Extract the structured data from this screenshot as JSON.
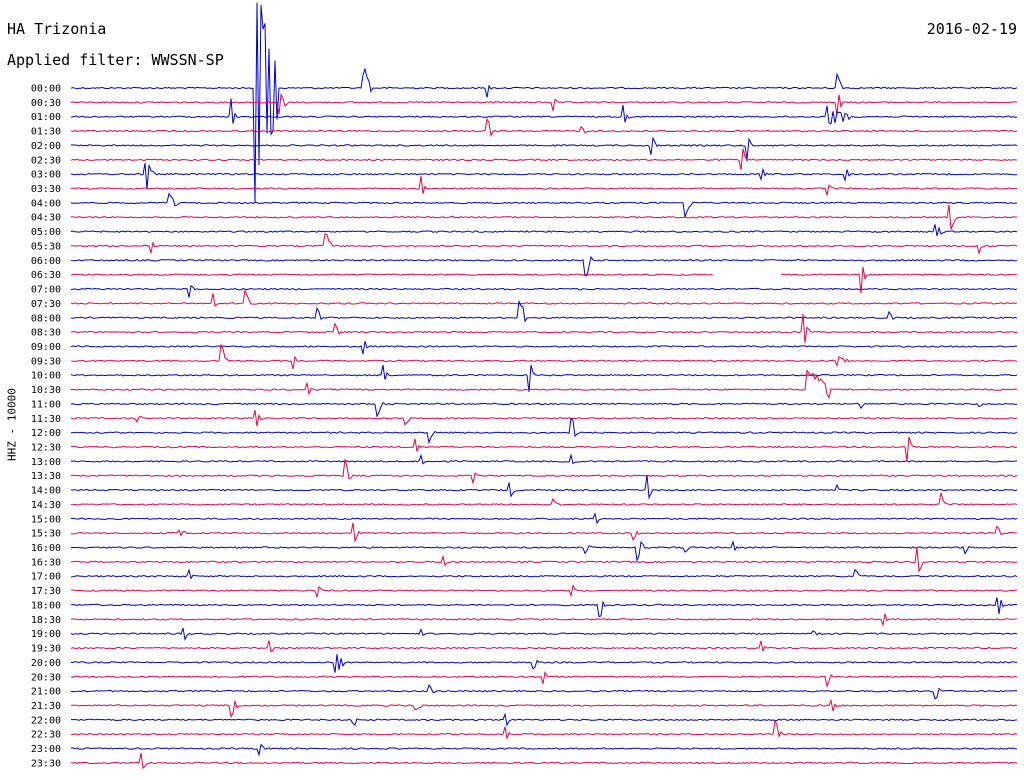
{
  "header": {
    "station": "HA Trizonia",
    "filter": "Applied filter: WWSSN-SP",
    "date": "2016-02-19",
    "channel": "HHZ - 10000"
  },
  "colors": {
    "blue": "#0000cc",
    "red": "#ee0044"
  },
  "chart_data": {
    "type": "helicorder",
    "title": "HA Trizonia",
    "date": "2016-02-19",
    "channel": "HHZ - 10000",
    "row_minutes": 30,
    "time_labels": [
      "00:00",
      "00:30",
      "01:00",
      "01:30",
      "02:00",
      "02:30",
      "03:00",
      "03:30",
      "04:00",
      "04:30",
      "05:00",
      "05:30",
      "06:00",
      "06:30",
      "07:00",
      "07:30",
      "08:00",
      "08:30",
      "09:00",
      "09:30",
      "10:00",
      "10:30",
      "11:00",
      "11:30",
      "12:00",
      "12:30",
      "13:00",
      "13:30",
      "14:00",
      "14:30",
      "15:00",
      "15:30",
      "16:00",
      "16:30",
      "17:00",
      "17:30",
      "18:00",
      "18:30",
      "19:00",
      "19:30",
      "20:00",
      "20:30",
      "21:00",
      "21:30",
      "22:00",
      "22:30",
      "23:00",
      "23:30"
    ],
    "line_colors": [
      "blue",
      "red"
    ],
    "events": [
      {
        "row": 0,
        "t": 0.195,
        "amp": 8,
        "dur": 0.02
      },
      {
        "row": 0,
        "t": 0.31,
        "amp": 1.6,
        "dur": 0.005
      },
      {
        "row": 0,
        "t": 0.44,
        "amp": 0.8,
        "dur": 0.002
      },
      {
        "row": 0,
        "t": 0.81,
        "amp": 1.2,
        "dur": 0.003
      },
      {
        "row": 1,
        "t": 0.22,
        "amp": 0.9,
        "dur": 0.006
      },
      {
        "row": 1,
        "t": 0.51,
        "amp": 0.6,
        "dur": 0.002
      },
      {
        "row": 1,
        "t": 0.81,
        "amp": 1.2,
        "dur": 0.003
      },
      {
        "row": 2,
        "t": 0.17,
        "amp": 1.4,
        "dur": 0.002
      },
      {
        "row": 2,
        "t": 0.585,
        "amp": 0.8,
        "dur": 0.002
      },
      {
        "row": 2,
        "t": 0.8,
        "amp": 0.8,
        "dur": 0.02
      },
      {
        "row": 3,
        "t": 0.44,
        "amp": 1.2,
        "dur": 0.003
      },
      {
        "row": 3,
        "t": 0.54,
        "amp": 0.5,
        "dur": 0.002
      },
      {
        "row": 4,
        "t": 0.615,
        "amp": 0.8,
        "dur": 0.002
      },
      {
        "row": 4,
        "t": 0.715,
        "amp": 1.2,
        "dur": 0.002
      },
      {
        "row": 5,
        "t": 0.71,
        "amp": 1.0,
        "dur": 0.002
      },
      {
        "row": 6,
        "t": 0.08,
        "amp": 1.3,
        "dur": 0.004
      },
      {
        "row": 6,
        "t": 0.73,
        "amp": 0.6,
        "dur": 0.003
      },
      {
        "row": 6,
        "t": 0.82,
        "amp": 0.6,
        "dur": 0.002
      },
      {
        "row": 7,
        "t": 0.37,
        "amp": 1.5,
        "dur": 0.002
      },
      {
        "row": 7,
        "t": 0.8,
        "amp": 0.6,
        "dur": 0.002
      },
      {
        "row": 8,
        "t": 0.105,
        "amp": 0.9,
        "dur": 0.005
      },
      {
        "row": 8,
        "t": 0.65,
        "amp": 1.4,
        "dur": 0.003
      },
      {
        "row": 9,
        "t": 0.93,
        "amp": 1.0,
        "dur": 0.004
      },
      {
        "row": 10,
        "t": 0.915,
        "amp": 0.6,
        "dur": 0.004
      },
      {
        "row": 11,
        "t": 0.085,
        "amp": 0.6,
        "dur": 0.002
      },
      {
        "row": 11,
        "t": 0.27,
        "amp": 1.4,
        "dur": 0.003
      },
      {
        "row": 11,
        "t": 0.96,
        "amp": 0.6,
        "dur": 0.002
      },
      {
        "row": 12,
        "t": 0.545,
        "amp": 1.4,
        "dur": 0.003
      },
      {
        "row": 13,
        "t": 0.835,
        "amp": 1.4,
        "dur": 0.003
      },
      {
        "row": 14,
        "t": 0.125,
        "amp": 0.9,
        "dur": 0.002
      },
      {
        "row": 15,
        "t": 0.15,
        "amp": 0.8,
        "dur": 0.002
      },
      {
        "row": 15,
        "t": 0.185,
        "amp": 1.3,
        "dur": 0.002
      },
      {
        "row": 16,
        "t": 0.26,
        "amp": 0.8,
        "dur": 0.003
      },
      {
        "row": 16,
        "t": 0.475,
        "amp": 1.5,
        "dur": 0.004
      },
      {
        "row": 16,
        "t": 0.865,
        "amp": 0.5,
        "dur": 0.002
      },
      {
        "row": 17,
        "t": 0.28,
        "amp": 0.6,
        "dur": 0.002
      },
      {
        "row": 17,
        "t": 0.775,
        "amp": 1.4,
        "dur": 0.003
      },
      {
        "row": 18,
        "t": 0.31,
        "amp": 0.6,
        "dur": 0.002
      },
      {
        "row": 19,
        "t": 0.16,
        "amp": 1.5,
        "dur": 0.002
      },
      {
        "row": 19,
        "t": 0.235,
        "amp": 0.6,
        "dur": 0.002
      },
      {
        "row": 19,
        "t": 0.81,
        "amp": 0.4,
        "dur": 0.01
      },
      {
        "row": 20,
        "t": 0.33,
        "amp": 0.9,
        "dur": 0.003
      },
      {
        "row": 20,
        "t": 0.485,
        "amp": 1.5,
        "dur": 0.002
      },
      {
        "row": 21,
        "t": 0.25,
        "amp": 0.6,
        "dur": 0.002
      },
      {
        "row": 21,
        "t": 0.78,
        "amp": 1.6,
        "dur": 0.02
      },
      {
        "row": 22,
        "t": 0.325,
        "amp": 0.9,
        "dur": 0.002
      },
      {
        "row": 22,
        "t": 0.835,
        "amp": 0.4,
        "dur": 0.002
      },
      {
        "row": 22,
        "t": 0.96,
        "amp": 0.3,
        "dur": 0.002
      },
      {
        "row": 23,
        "t": 0.07,
        "amp": 0.3,
        "dur": 0.003
      },
      {
        "row": 23,
        "t": 0.195,
        "amp": 1.0,
        "dur": 0.003
      },
      {
        "row": 23,
        "t": 0.355,
        "amp": 0.6,
        "dur": 0.002
      },
      {
        "row": 24,
        "t": 0.38,
        "amp": 0.8,
        "dur": 0.002
      },
      {
        "row": 24,
        "t": 0.53,
        "amp": 1.4,
        "dur": 0.002
      },
      {
        "row": 25,
        "t": 0.365,
        "amp": 0.8,
        "dur": 0.002
      },
      {
        "row": 25,
        "t": 0.885,
        "amp": 1.4,
        "dur": 0.002
      },
      {
        "row": 26,
        "t": 0.37,
        "amp": 0.6,
        "dur": 0.002
      },
      {
        "row": 26,
        "t": 0.53,
        "amp": 0.4,
        "dur": 0.002
      },
      {
        "row": 27,
        "t": 0.29,
        "amp": 1.2,
        "dur": 0.003
      },
      {
        "row": 27,
        "t": 0.425,
        "amp": 0.5,
        "dur": 0.002
      },
      {
        "row": 28,
        "t": 0.465,
        "amp": 0.6,
        "dur": 0.002
      },
      {
        "row": 28,
        "t": 0.61,
        "amp": 1.2,
        "dur": 0.002
      },
      {
        "row": 28,
        "t": 0.81,
        "amp": 0.4,
        "dur": 0.002
      },
      {
        "row": 29,
        "t": 0.51,
        "amp": 0.5,
        "dur": 0.002
      },
      {
        "row": 29,
        "t": 0.92,
        "amp": 1.0,
        "dur": 0.002
      },
      {
        "row": 30,
        "t": 0.555,
        "amp": 0.6,
        "dur": 0.002
      },
      {
        "row": 31,
        "t": 0.115,
        "amp": 0.3,
        "dur": 0.005
      },
      {
        "row": 31,
        "t": 0.3,
        "amp": 0.8,
        "dur": 0.003
      },
      {
        "row": 31,
        "t": 0.595,
        "amp": 0.5,
        "dur": 0.003
      },
      {
        "row": 31,
        "t": 0.98,
        "amp": 0.8,
        "dur": 0.002
      },
      {
        "row": 32,
        "t": 0.545,
        "amp": 0.4,
        "dur": 0.002
      },
      {
        "row": 32,
        "t": 0.6,
        "amp": 1.0,
        "dur": 0.003
      },
      {
        "row": 32,
        "t": 0.65,
        "amp": 0.5,
        "dur": 0.002
      },
      {
        "row": 32,
        "t": 0.7,
        "amp": 0.5,
        "dur": 0.002
      },
      {
        "row": 32,
        "t": 0.945,
        "amp": 0.6,
        "dur": 0.002
      },
      {
        "row": 33,
        "t": 0.395,
        "amp": 0.5,
        "dur": 0.002
      },
      {
        "row": 33,
        "t": 0.895,
        "amp": 1.2,
        "dur": 0.003
      },
      {
        "row": 34,
        "t": 0.125,
        "amp": 0.6,
        "dur": 0.002
      },
      {
        "row": 34,
        "t": 0.83,
        "amp": 0.6,
        "dur": 0.002
      },
      {
        "row": 35,
        "t": 0.26,
        "amp": 0.7,
        "dur": 0.003
      },
      {
        "row": 35,
        "t": 0.53,
        "amp": 0.5,
        "dur": 0.002
      },
      {
        "row": 36,
        "t": 0.56,
        "amp": 0.9,
        "dur": 0.002
      },
      {
        "row": 36,
        "t": 0.98,
        "amp": 0.8,
        "dur": 0.004
      },
      {
        "row": 37,
        "t": 0.86,
        "amp": 0.6,
        "dur": 0.002
      },
      {
        "row": 38,
        "t": 0.12,
        "amp": 0.6,
        "dur": 0.002
      },
      {
        "row": 38,
        "t": 0.37,
        "amp": 0.5,
        "dur": 0.002
      },
      {
        "row": 38,
        "t": 0.785,
        "amp": 0.3,
        "dur": 0.003
      },
      {
        "row": 39,
        "t": 0.21,
        "amp": 0.6,
        "dur": 0.002
      },
      {
        "row": 39,
        "t": 0.73,
        "amp": 0.5,
        "dur": 0.002
      },
      {
        "row": 40,
        "t": 0.28,
        "amp": 1.0,
        "dur": 0.006
      },
      {
        "row": 40,
        "t": 0.49,
        "amp": 0.5,
        "dur": 0.002
      },
      {
        "row": 41,
        "t": 0.5,
        "amp": 0.6,
        "dur": 0.002
      },
      {
        "row": 41,
        "t": 0.8,
        "amp": 0.8,
        "dur": 0.002
      },
      {
        "row": 42,
        "t": 0.38,
        "amp": 0.5,
        "dur": 0.002
      },
      {
        "row": 42,
        "t": 0.915,
        "amp": 0.6,
        "dur": 0.003
      },
      {
        "row": 43,
        "t": 0.17,
        "amp": 0.9,
        "dur": 0.004
      },
      {
        "row": 43,
        "t": 0.365,
        "amp": 0.5,
        "dur": 0.004
      },
      {
        "row": 43,
        "t": 0.805,
        "amp": 0.6,
        "dur": 0.002
      },
      {
        "row": 44,
        "t": 0.3,
        "amp": 0.4,
        "dur": 0.002
      },
      {
        "row": 44,
        "t": 0.46,
        "amp": 0.6,
        "dur": 0.002
      },
      {
        "row": 45,
        "t": 0.46,
        "amp": 0.6,
        "dur": 0.002
      },
      {
        "row": 45,
        "t": 0.745,
        "amp": 1.0,
        "dur": 0.003
      },
      {
        "row": 46,
        "t": 0.2,
        "amp": 0.5,
        "dur": 0.003
      },
      {
        "row": 47,
        "t": 0.075,
        "amp": 0.8,
        "dur": 0.003
      }
    ],
    "data_gaps": [
      {
        "row": 13,
        "t0": 0.68,
        "t1": 0.75
      }
    ]
  }
}
